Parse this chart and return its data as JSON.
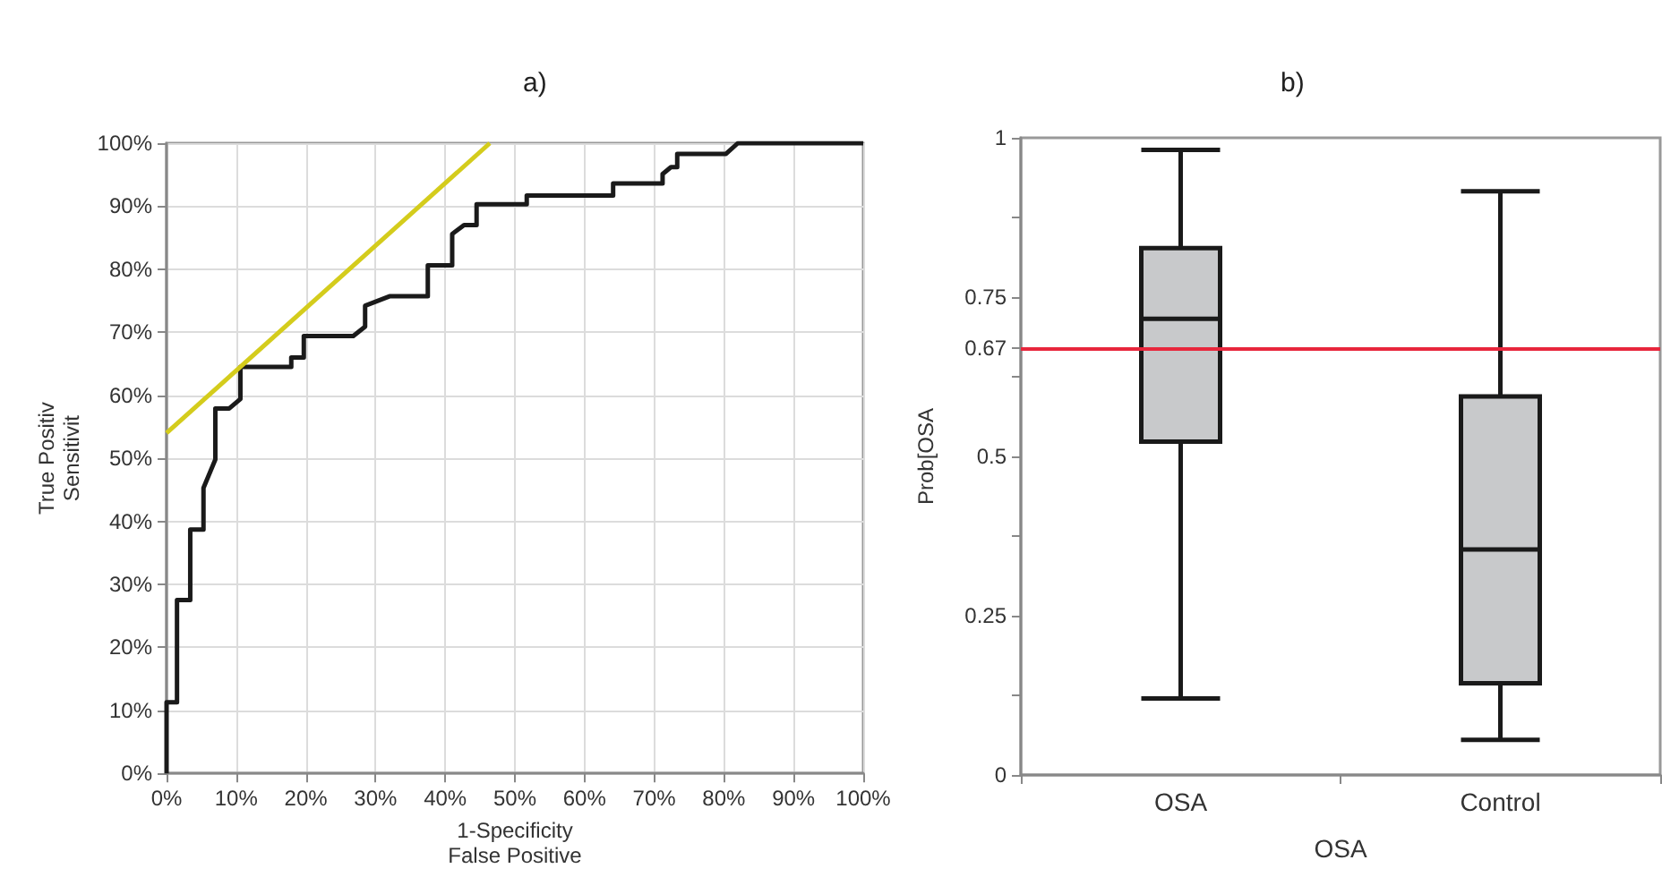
{
  "chart_data": [
    {
      "type": "line",
      "title": "a)",
      "xlabel": "1-Specificity\nFalse Positive",
      "ylabel": "True Positiv\nSensitivit",
      "xlim": [
        0,
        100
      ],
      "ylim": [
        0,
        100
      ],
      "xticks": [
        {
          "value": 0,
          "label": "0%"
        },
        {
          "value": 10,
          "label": "10%"
        },
        {
          "value": 20,
          "label": "20%"
        },
        {
          "value": 30,
          "label": "30%"
        },
        {
          "value": 40,
          "label": "40%"
        },
        {
          "value": 50,
          "label": "50%"
        },
        {
          "value": 60,
          "label": "60%"
        },
        {
          "value": 70,
          "label": "70%"
        },
        {
          "value": 80,
          "label": "80%"
        },
        {
          "value": 90,
          "label": "90%"
        },
        {
          "value": 100,
          "label": "100%"
        }
      ],
      "yticks": [
        {
          "value": 0,
          "label": "0%"
        },
        {
          "value": 10,
          "label": "10%"
        },
        {
          "value": 20,
          "label": "20%"
        },
        {
          "value": 30,
          "label": "30%"
        },
        {
          "value": 40,
          "label": "40%"
        },
        {
          "value": 50,
          "label": "50%"
        },
        {
          "value": 60,
          "label": "60%"
        },
        {
          "value": 70,
          "label": "70%"
        },
        {
          "value": 80,
          "label": "80%"
        },
        {
          "value": 90,
          "label": "90%"
        },
        {
          "value": 100,
          "label": "100%"
        }
      ],
      "grid": true,
      "marker": "none",
      "series": [
        {
          "color": "#1a1a1a",
          "x": [
            0,
            0,
            1.5,
            1.5,
            3.4,
            3.4,
            5.3,
            5.3,
            7.0,
            7.0,
            9.0,
            10.6,
            10.6,
            17.9,
            17.9,
            19.7,
            19.7,
            26.8,
            28.5,
            28.5,
            32,
            37.5,
            37.5,
            41,
            41,
            42.7,
            44.5,
            44.5,
            51.7,
            51.7,
            64.1,
            64.1,
            71.2,
            71.2,
            72.4,
            73.3,
            73.3,
            80.3,
            82,
            100
          ],
          "values": [
            0,
            11.3,
            11.3,
            27.5,
            27.5,
            38.7,
            38.7,
            45.3,
            49.8,
            57.9,
            57.9,
            59.4,
            64.5,
            64.5,
            66,
            66,
            69.4,
            69.4,
            70.9,
            74.2,
            75.7,
            75.7,
            80.6,
            80.6,
            85.6,
            87,
            87,
            90.3,
            90.3,
            91.7,
            91.7,
            93.6,
            93.6,
            95.1,
            96.2,
            96.2,
            98.3,
            98.3,
            100,
            100
          ]
        },
        {
          "color": "#d4cc1c",
          "x": [
            0,
            46.4
          ],
          "values": [
            54,
            100
          ]
        }
      ]
    },
    {
      "type": "box",
      "title": "b)",
      "xlabel": "OSA",
      "ylabel": "Prob[OSA",
      "categories": [
        "OSA",
        "Control"
      ],
      "ylim": [
        0,
        1
      ],
      "yticks": [
        0,
        {
          "value": 0.125,
          "label": null
        },
        0.25,
        {
          "value": 0.375,
          "label": null
        },
        0.5,
        {
          "value": 0.625,
          "label": null
        },
        0.67,
        0.75,
        {
          "value": 0.875,
          "label": null
        },
        1
      ],
      "grid": false,
      "ref_lines": [
        {
          "axis": "y",
          "value": 0.67,
          "color": "#e8263c"
        }
      ],
      "series": [
        {
          "color": "#c8c9cb",
          "boxes": [
            {
              "low": 0.12,
              "q1": 0.523,
              "median": 0.716,
              "q3": 0.827,
              "high": 0.981
            },
            {
              "low": 0.055,
              "q1": 0.144,
              "median": 0.354,
              "q3": 0.594,
              "high": 0.916
            }
          ]
        }
      ]
    }
  ]
}
